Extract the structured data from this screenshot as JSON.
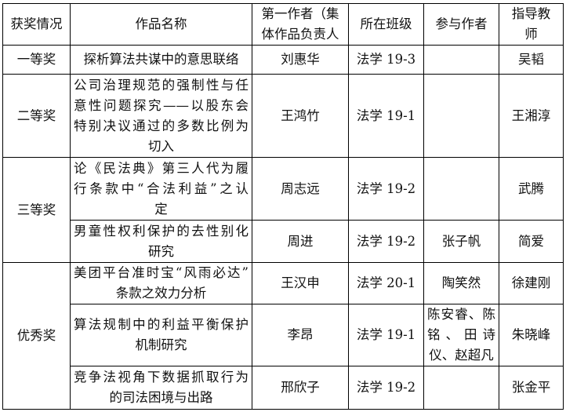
{
  "header": [
    "获奖情况",
    "作品名称",
    "第一作者（集体作品负责人",
    "所在班级",
    "参与作者",
    "指导教师"
  ],
  "header_lines": {
    "c2": [
      "第一作者（集",
      "体作品负责人"
    ],
    "c5": [
      "指导教",
      "师"
    ]
  },
  "rows": [
    {
      "award": "一等奖",
      "title": [
        "探析算法共谋中的意思联络"
      ],
      "author": "刘惠华",
      "class": "法学 19-3",
      "co": [],
      "teacher": "吴韬"
    },
    {
      "award": "二等奖",
      "title": [
        "公司治理规范的强制性与任",
        "意性问题探究——以股东会",
        "特别决议通过的多数比例为",
        "切入"
      ],
      "author": "王鸿竹",
      "class": "法学 19-1",
      "co": [],
      "teacher": "王湘淳"
    },
    {
      "award": "三等奖",
      "title": [
        "论《民法典》第三人代为履",
        "行条款中“合法利益”之认",
        "定"
      ],
      "author": "周志远",
      "class": "法学 19-2",
      "co": [],
      "teacher": "武腾"
    },
    {
      "award": "",
      "title": [
        "男童性权利保护的去性别化",
        "研究"
      ],
      "author": "周进",
      "class": "法学 19-2",
      "co": [
        "张子帆"
      ],
      "teacher": "简爱"
    },
    {
      "award": "优秀奖",
      "title": [
        "美团平台准时宝“风雨必达”",
        "条款之效力分析"
      ],
      "author": "王汉申",
      "class": "法学 20-1",
      "co": [
        "陶笑然"
      ],
      "teacher": "徐建刚"
    },
    {
      "award": "",
      "title": [
        "算法规制中的利益平衡保护",
        "机制研究"
      ],
      "author": "李昂",
      "class": "法学 19-1",
      "co": [
        "陈安睿、陈",
        "铭、田诗",
        "仪、赵超凡"
      ],
      "teacher": "朱晓峰"
    },
    {
      "award": "",
      "title": [
        "竞争法视角下数据抓取行为",
        "的司法困境与出路"
      ],
      "author": "邢欣子",
      "class": "法学 19-2",
      "co": [],
      "teacher": "张金平"
    }
  ]
}
